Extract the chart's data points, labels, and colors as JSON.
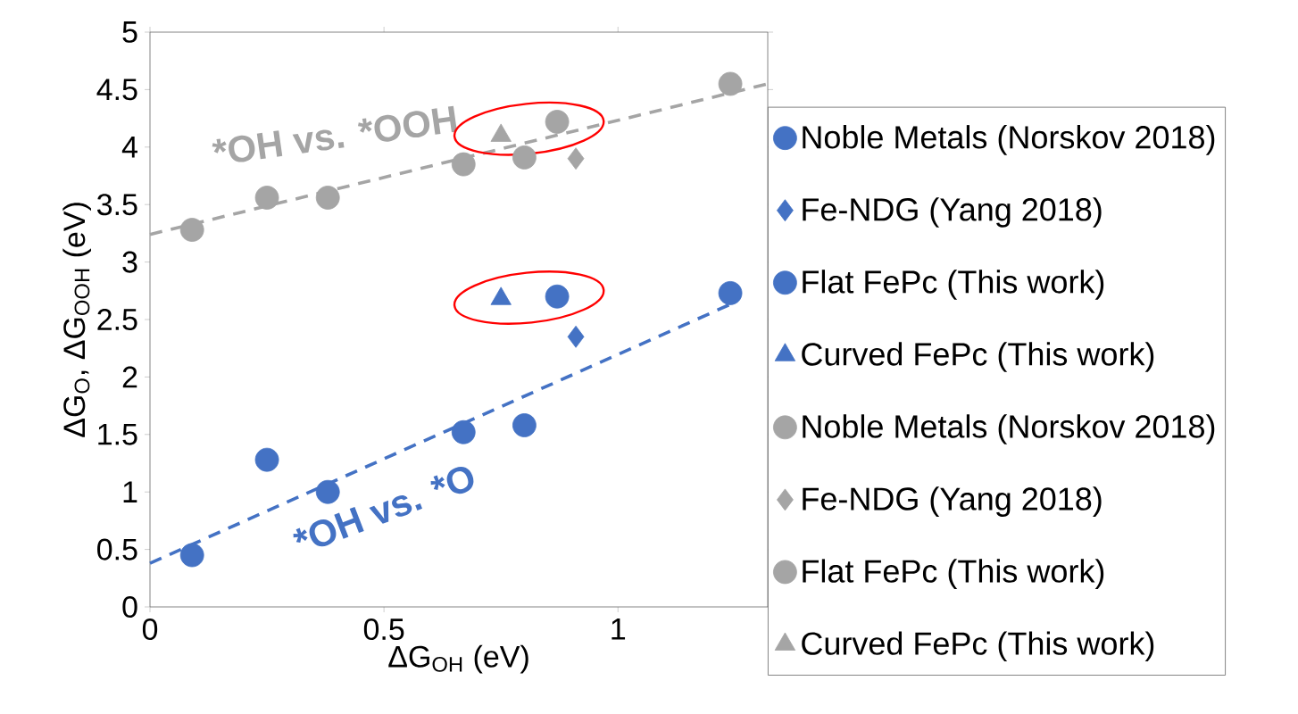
{
  "chart_data": {
    "type": "scatter",
    "xlabel": "ΔG$_{OH}$ (eV)",
    "ylabel": "ΔG$_{O}$, ΔG$_{OOH}$ (eV)",
    "xlim": [
      0,
      1.32
    ],
    "ylim": [
      0,
      5
    ],
    "xticks": [
      0,
      0.5,
      1
    ],
    "yticks": [
      0,
      0.5,
      1,
      1.5,
      2,
      2.5,
      3,
      3.5,
      4,
      4.5,
      5
    ],
    "legend": "right",
    "grid": false,
    "series": [
      {
        "name": "Noble Metals (Norskov 2018)",
        "color": "#4472c4",
        "marker": "circle",
        "x": [
          0.09,
          0.25,
          0.38,
          0.67,
          0.8,
          1.24
        ],
        "values": [
          0.45,
          1.28,
          1.0,
          1.52,
          1.58,
          2.73
        ]
      },
      {
        "name": "Fe-NDG (Yang 2018)",
        "color": "#4472c4",
        "marker": "diamond",
        "x": [
          0.91
        ],
        "values": [
          2.35
        ]
      },
      {
        "name": "Flat FePc (This work)",
        "color": "#4472c4",
        "marker": "circle",
        "x": [
          0.87
        ],
        "values": [
          2.7
        ]
      },
      {
        "name": "Curved FePc (This work)",
        "color": "#4472c4",
        "marker": "triangle",
        "x": [
          0.75
        ],
        "values": [
          2.68
        ]
      },
      {
        "name": "Noble Metals (Norskov 2018)",
        "color": "#a5a5a5",
        "marker": "circle",
        "x": [
          0.09,
          0.25,
          0.38,
          0.67,
          0.8,
          1.24
        ],
        "values": [
          3.28,
          3.56,
          3.56,
          3.85,
          3.91,
          4.55
        ]
      },
      {
        "name": "Fe-NDG (Yang 2018)",
        "color": "#a5a5a5",
        "marker": "diamond",
        "x": [
          0.91
        ],
        "values": [
          3.9
        ]
      },
      {
        "name": "Flat FePc (This work)",
        "color": "#a5a5a5",
        "marker": "circle",
        "x": [
          0.87
        ],
        "values": [
          4.22
        ]
      },
      {
        "name": "Curved FePc (This work)",
        "color": "#a5a5a5",
        "marker": "triangle",
        "x": [
          0.75
        ],
        "values": [
          4.1
        ]
      },
      {
        "type": "line",
        "line_style": "dashed",
        "color": "#4472c4",
        "x": [
          0,
          1.25
        ],
        "values": [
          0.38,
          2.65
        ]
      },
      {
        "type": "line",
        "line_style": "dashed",
        "color": "#a5a5a5",
        "x": [
          0,
          1.32
        ],
        "values": [
          3.24,
          4.55
        ]
      }
    ],
    "annotations": [
      "*OH vs. *O",
      "*OH vs. *OOH"
    ]
  }
}
